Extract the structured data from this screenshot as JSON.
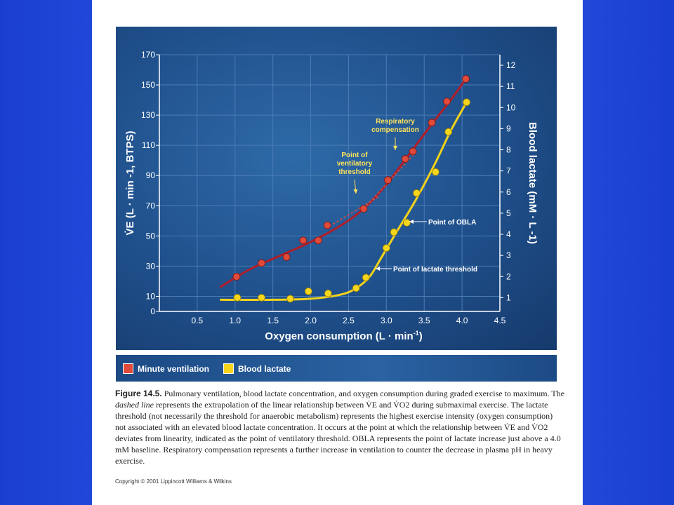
{
  "colors": {
    "minute_ventilation": "#e04a3a",
    "minute_ventilation_line": "#b01e2a",
    "blood_lactate": "#f6d61c",
    "blood_lactate_line": "#f2d21a",
    "panel": "#1f4f8a"
  },
  "chart_data": {
    "type": "line",
    "xlabel": "Oxygen consumption (L · min",
    "xlabel_sup": "-1",
    "xlabel_end": ")",
    "ylabel": "V̇E (L · min -1, BTPS)",
    "y2label": "Blood lactate (mM · L -1)",
    "xlim": [
      0,
      4.5
    ],
    "ylim": [
      0,
      170
    ],
    "y2lim": [
      0.35,
      12.5
    ],
    "x_ticks": [
      "0.5",
      "1.0",
      "1.5",
      "2.0",
      "2.5",
      "3.0",
      "3.5",
      "4.0",
      "4.5"
    ],
    "x_tick_values": [
      0.5,
      1.0,
      1.5,
      2.0,
      2.5,
      3.0,
      3.5,
      4.0,
      4.5
    ],
    "y_ticks": [
      "0",
      "10",
      "30",
      "50",
      "70",
      "90",
      "110",
      "130",
      "150",
      "170"
    ],
    "y_tick_values": [
      0,
      10,
      30,
      50,
      70,
      90,
      110,
      130,
      150,
      170
    ],
    "y2_ticks": [
      "1",
      "2",
      "3",
      "4",
      "5",
      "6",
      "7",
      "8",
      "9",
      "10",
      "11",
      "12"
    ],
    "y2_tick_values": [
      1,
      2,
      3,
      4,
      5,
      6,
      7,
      8,
      9,
      10,
      11,
      12
    ],
    "grid": true,
    "series": [
      {
        "name": "Minute ventilation",
        "axis": "left",
        "points": [
          [
            1.02,
            23
          ],
          [
            1.35,
            32
          ],
          [
            1.68,
            36
          ],
          [
            1.9,
            47
          ],
          [
            2.1,
            47
          ],
          [
            2.22,
            57
          ],
          [
            2.7,
            68
          ],
          [
            3.02,
            87
          ],
          [
            3.25,
            101
          ],
          [
            3.35,
            106
          ],
          [
            3.6,
            125
          ],
          [
            3.8,
            139
          ],
          [
            4.05,
            154
          ]
        ],
        "curve": [
          [
            0.8,
            16
          ],
          [
            1.2,
            28
          ],
          [
            1.6,
            37
          ],
          [
            2.0,
            46
          ],
          [
            2.4,
            57
          ],
          [
            2.7,
            68
          ],
          [
            3.0,
            84
          ],
          [
            3.3,
            104
          ],
          [
            3.6,
            124
          ],
          [
            3.85,
            140
          ],
          [
            4.05,
            154
          ]
        ],
        "dashed_extrapolations": [
          [
            [
              2.2,
              55
            ],
            [
              2.9,
              76
            ]
          ],
          [
            [
              2.7,
              68
            ],
            [
              3.4,
              106
            ]
          ]
        ]
      },
      {
        "name": "Blood lactate",
        "axis": "right",
        "points": [
          [
            1.03,
            1.0
          ],
          [
            1.35,
            1.0
          ],
          [
            1.73,
            0.95
          ],
          [
            1.97,
            1.3
          ],
          [
            2.23,
            1.2
          ],
          [
            2.6,
            1.45
          ],
          [
            2.73,
            1.95
          ],
          [
            3.0,
            3.35
          ],
          [
            3.1,
            4.1
          ],
          [
            3.27,
            4.55
          ],
          [
            3.4,
            5.95
          ],
          [
            3.65,
            6.95
          ],
          [
            3.82,
            8.85
          ],
          [
            4.06,
            10.25
          ]
        ],
        "curve": [
          [
            0.8,
            0.9
          ],
          [
            1.5,
            0.9
          ],
          [
            2.0,
            0.95
          ],
          [
            2.4,
            1.15
          ],
          [
            2.6,
            1.45
          ],
          [
            2.78,
            2.0
          ],
          [
            2.95,
            3.0
          ],
          [
            3.15,
            4.2
          ],
          [
            3.4,
            5.7
          ],
          [
            3.65,
            7.4
          ],
          [
            3.85,
            8.9
          ],
          [
            4.06,
            10.25
          ]
        ]
      }
    ],
    "annotations": [
      {
        "text_lines": [
          "Respiratory",
          "compensation"
        ],
        "color": "yellow",
        "target": [
          3.3,
          104
        ]
      },
      {
        "text_lines": [
          "Point of",
          "ventilatory",
          "threshold"
        ],
        "color": "yellow",
        "target": [
          2.7,
          68
        ]
      },
      {
        "text_lines": [
          "Point of OBLA"
        ],
        "color": "white",
        "target_axis": "right",
        "target": [
          3.28,
          4.0
        ]
      },
      {
        "text_lines": [
          "Point of lactate threshold"
        ],
        "color": "white",
        "target_axis": "right",
        "target": [
          2.76,
          2.0
        ]
      }
    ]
  },
  "legend": {
    "items": [
      {
        "label": "Minute ventilation",
        "color": "#e04a3a"
      },
      {
        "label": "Blood lactate",
        "color": "#f6d61c"
      }
    ]
  },
  "caption": {
    "figure_label": "Figure 14.5.",
    "text_1": "Pulmonary ventilation, blood lactate concentration, and oxygen consumption during graded exercise to maximum. The ",
    "emph": "dashed line",
    "text_2": " represents the extrapolation of the linear relationship between V̇E and V̇O2 during submaximal exercise. The lactate threshold (not necessarily the threshold for anaerobic metabolism) represents the highest exercise intensity (oxygen consumption) not associated with an elevated blood lactate concentration. It occurs at the point at which the relationship between V̇E and V̇O2 deviates from linearity, indicated as the point of ventilatory threshold. OBLA represents the point of lactate increase just above a 4.0 mM baseline. Respiratory compensation represents a further increase in ventilation to counter the decrease in plasma pH in heavy exercise."
  },
  "copyright": "Copyright © 2001 Lippincott Williams & Wilkins"
}
